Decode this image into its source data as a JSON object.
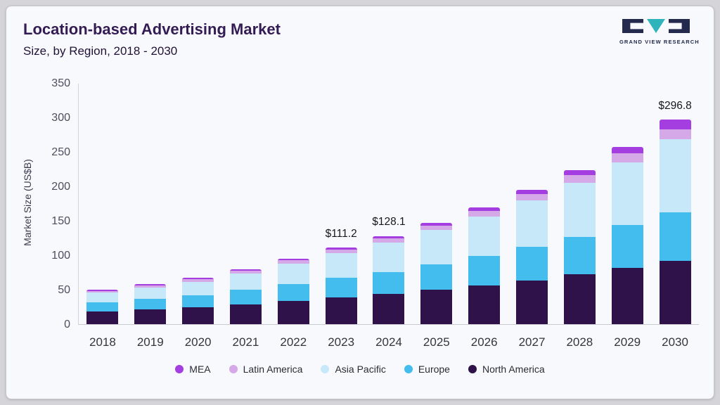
{
  "header": {
    "title": "Location-based Advertising Market",
    "subtitle": "Size, by Region, 2018 - 2030"
  },
  "logo": {
    "text": "GRAND VIEW RESEARCH"
  },
  "chart_data": {
    "type": "bar",
    "stacked": true,
    "title": "Location-based Advertising Market Size, by Region, 2018 - 2030",
    "ylabel": "Market Size (US$B)",
    "ylim": [
      0,
      350
    ],
    "yticks": [
      0,
      50,
      100,
      150,
      200,
      250,
      300,
      350
    ],
    "grid": false,
    "legend_position": "bottom",
    "categories": [
      "2018",
      "2019",
      "2020",
      "2021",
      "2022",
      "2023",
      "2024",
      "2025",
      "2026",
      "2027",
      "2028",
      "2029",
      "2030"
    ],
    "series": [
      {
        "name": "North America",
        "color": "#30124a",
        "values": [
          18.0,
          21.0,
          24.0,
          29.0,
          33.5,
          38.5,
          43.5,
          49.6,
          56.0,
          63.5,
          72.0,
          81.5,
          92.0
        ]
      },
      {
        "name": "Europe",
        "color": "#42bdee",
        "values": [
          13.5,
          15.5,
          18.0,
          21.0,
          25.0,
          28.5,
          32.5,
          37.2,
          42.5,
          48.5,
          55.0,
          62.5,
          70.5
        ]
      },
      {
        "name": "Asia Pacific",
        "color": "#c7e8f8",
        "values": [
          14.0,
          16.5,
          19.5,
          24.0,
          29.5,
          36.0,
          42.5,
          49.6,
          58.0,
          67.5,
          78.5,
          91.0,
          105.5
        ]
      },
      {
        "name": "Latin America",
        "color": "#d5a9e8",
        "values": [
          2.8,
          3.1,
          3.5,
          4.0,
          4.5,
          5.2,
          6.0,
          6.9,
          8.0,
          9.3,
          10.8,
          12.6,
          14.8
        ]
      },
      {
        "name": "MEA",
        "color": "#a43ee0",
        "values": [
          1.7,
          1.9,
          2.0,
          2.0,
          2.5,
          3.0,
          3.6,
          4.0,
          4.9,
          6.0,
          7.7,
          10.0,
          14.0
        ]
      }
    ],
    "totals": [
      50.0,
      58.0,
      67.0,
      80.0,
      95.0,
      111.2,
      128.1,
      147.3,
      169.4,
      194.8,
      224.0,
      257.6,
      296.8
    ],
    "annotations": [
      {
        "category": "2023",
        "label": "$111.2"
      },
      {
        "category": "2024",
        "label": "$128.1"
      },
      {
        "category": "2030",
        "label": "$296.8"
      }
    ],
    "legend": [
      "MEA",
      "Latin America",
      "Asia Pacific",
      "Europe",
      "North America"
    ]
  }
}
